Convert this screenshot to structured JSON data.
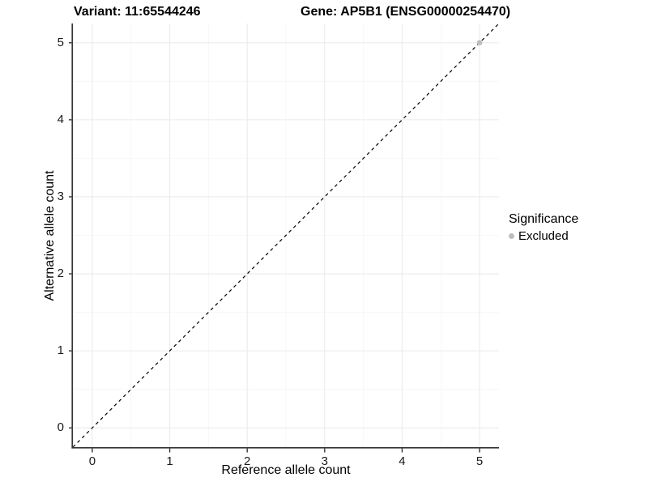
{
  "chart_data": {
    "type": "scatter",
    "title_left": "Variant: 11:65544246",
    "title_right": "Gene: AP5B1 (ENSG00000254470)",
    "xlabel": "Reference allele count",
    "ylabel": "Alternative allele count",
    "xlim": [
      -0.25,
      5.25
    ],
    "ylim": [
      -0.25,
      5.25
    ],
    "xticks": [
      0,
      1,
      2,
      3,
      4,
      5
    ],
    "yticks": [
      0,
      1,
      2,
      3,
      4,
      5
    ],
    "grid": "major+minor",
    "identity_line": {
      "style": "dashed",
      "from": [
        -0.25,
        -0.25
      ],
      "to": [
        5.25,
        5.25
      ],
      "color": "#000000"
    },
    "points": [
      {
        "x": 5,
        "y": 5,
        "series": "Excluded"
      }
    ],
    "legend": {
      "title": "Significance",
      "position": "right",
      "entries": [
        {
          "label": "Excluded",
          "color": "#bdbdbd"
        }
      ]
    },
    "colors": {
      "background": "#ffffff",
      "grid_major": "#ebebeb",
      "grid_minor": "#f6f6f6",
      "axis": "#333333",
      "point": "#bdbdbd",
      "text": "#000000"
    }
  }
}
